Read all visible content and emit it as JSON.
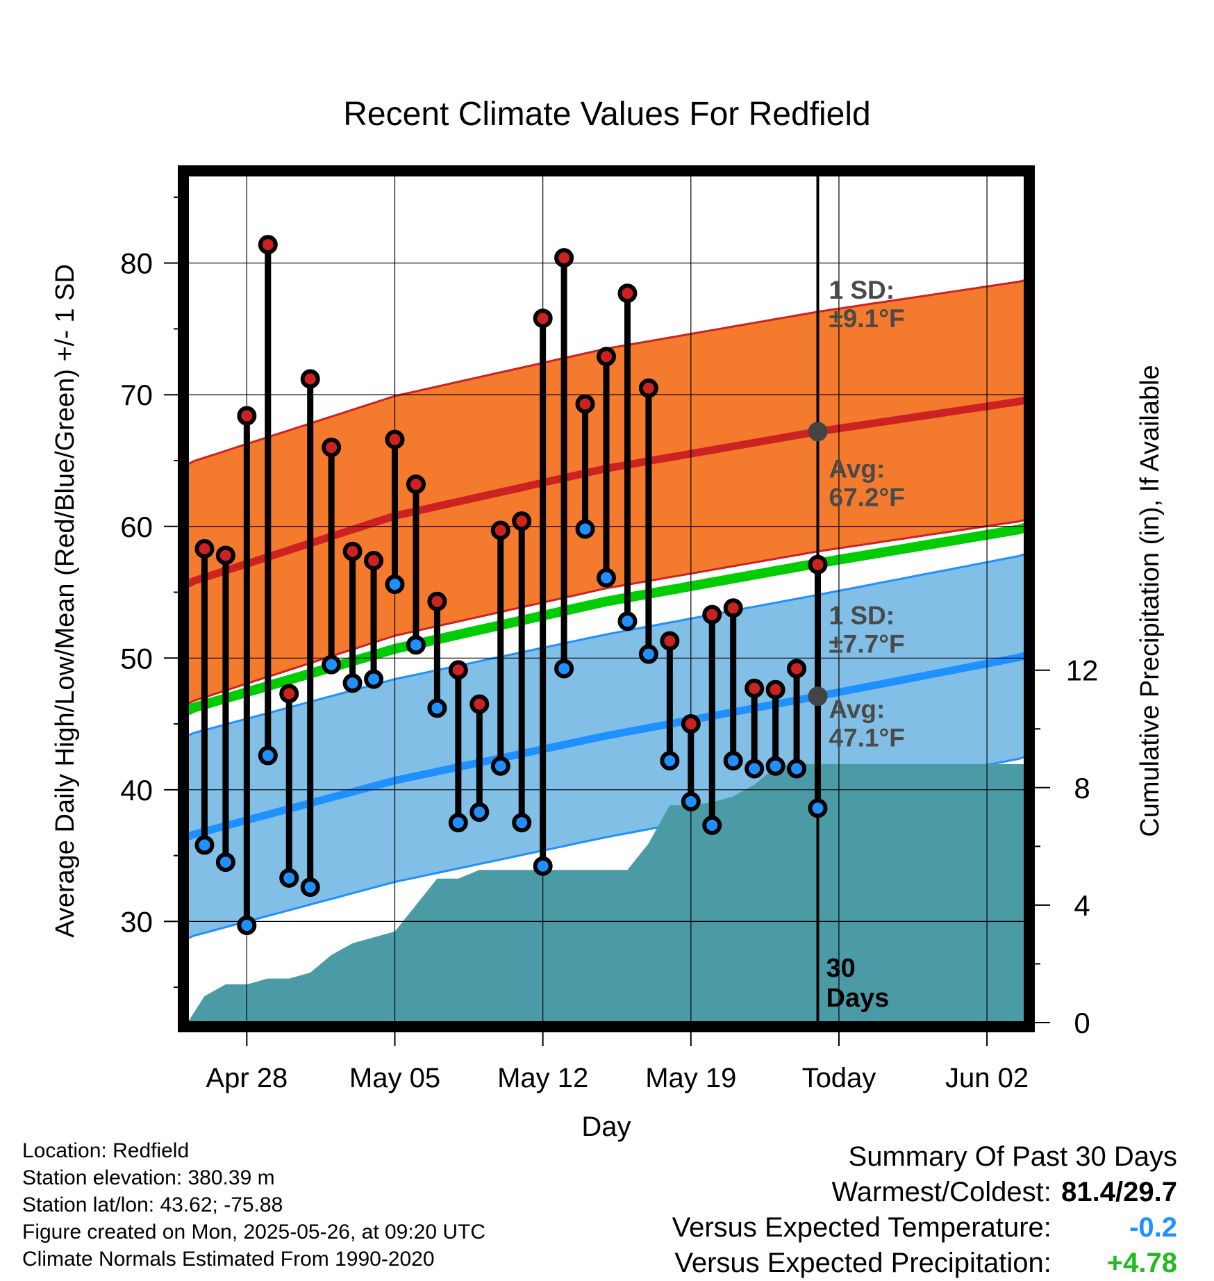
{
  "chart_data": {
    "type": "line",
    "title": "Recent Climate Values For Redfield",
    "xlabel": "Day",
    "ylabel": "Average Daily High/Low/Mean (Red/Blue/Green) +/- 1 SD",
    "ylabel_right": "Cumulative Precipitation (in), If Available",
    "x_ticks": [
      "Apr 28",
      "May 05",
      "May 12",
      "May 19",
      "Today",
      "Jun 02"
    ],
    "x_range": [
      "2025-04-25",
      "2025-06-04"
    ],
    "y_ticks": [
      30,
      40,
      50,
      60,
      70,
      80
    ],
    "ylim": [
      22,
      87
    ],
    "y2_ticks": [
      0,
      4,
      8,
      12
    ],
    "y2lim": [
      0,
      29
    ],
    "grid": true,
    "colors": {
      "high": "#cc2222",
      "low": "#1e90ff",
      "mean": "#00cc00",
      "high_band": "#f47a2e",
      "low_band": "#82bfe6",
      "precip": "#4a9ba5",
      "warm_text": "#000000",
      "temp_anom": "#1e90ff",
      "precip_anom": "#22bb22"
    },
    "normals": {
      "dates": [
        "2025-04-25",
        "2025-05-05",
        "2025-05-15",
        "2025-05-25",
        "2025-06-04"
      ],
      "high_avg": [
        55.6,
        60.8,
        64.4,
        67.2,
        69.6
      ],
      "high_sd": 9.1,
      "low_avg": [
        36.4,
        40.7,
        44.1,
        47.1,
        50.2
      ],
      "low_sd": 7.7,
      "mean_avg": [
        46.0,
        50.7,
        54.3,
        57.2,
        59.9
      ]
    },
    "series": [
      {
        "name": "High",
        "values": [
          {
            "date": "2025-04-26",
            "value": 58.3
          },
          {
            "date": "2025-04-27",
            "value": 57.8
          },
          {
            "date": "2025-04-28",
            "value": 68.4
          },
          {
            "date": "2025-04-29",
            "value": 81.4
          },
          {
            "date": "2025-04-30",
            "value": 47.3
          },
          {
            "date": "2025-05-01",
            "value": 71.2
          },
          {
            "date": "2025-05-02",
            "value": 66.0
          },
          {
            "date": "2025-05-03",
            "value": 58.1
          },
          {
            "date": "2025-05-04",
            "value": 57.4
          },
          {
            "date": "2025-05-05",
            "value": 66.6
          },
          {
            "date": "2025-05-06",
            "value": 63.2
          },
          {
            "date": "2025-05-07",
            "value": 54.3
          },
          {
            "date": "2025-05-08",
            "value": 49.1
          },
          {
            "date": "2025-05-09",
            "value": 46.5
          },
          {
            "date": "2025-05-10",
            "value": 59.7
          },
          {
            "date": "2025-05-11",
            "value": 60.4
          },
          {
            "date": "2025-05-12",
            "value": 75.8
          },
          {
            "date": "2025-05-13",
            "value": 80.4
          },
          {
            "date": "2025-05-14",
            "value": 69.3
          },
          {
            "date": "2025-05-15",
            "value": 72.9
          },
          {
            "date": "2025-05-16",
            "value": 77.7
          },
          {
            "date": "2025-05-17",
            "value": 70.5
          },
          {
            "date": "2025-05-18",
            "value": 51.3
          },
          {
            "date": "2025-05-19",
            "value": 45.0
          },
          {
            "date": "2025-05-20",
            "value": 53.3
          },
          {
            "date": "2025-05-21",
            "value": 53.8
          },
          {
            "date": "2025-05-22",
            "value": 47.7
          },
          {
            "date": "2025-05-23",
            "value": 47.6
          },
          {
            "date": "2025-05-24",
            "value": 49.2
          },
          {
            "date": "2025-05-25",
            "value": 57.1
          }
        ]
      },
      {
        "name": "Low",
        "values": [
          {
            "date": "2025-04-26",
            "value": 35.8
          },
          {
            "date": "2025-04-27",
            "value": 34.5
          },
          {
            "date": "2025-04-28",
            "value": 29.7
          },
          {
            "date": "2025-04-29",
            "value": 42.6
          },
          {
            "date": "2025-04-30",
            "value": 33.3
          },
          {
            "date": "2025-05-01",
            "value": 32.6
          },
          {
            "date": "2025-05-02",
            "value": 49.5
          },
          {
            "date": "2025-05-03",
            "value": 48.1
          },
          {
            "date": "2025-05-04",
            "value": 48.4
          },
          {
            "date": "2025-05-05",
            "value": 55.6
          },
          {
            "date": "2025-05-06",
            "value": 51.0
          },
          {
            "date": "2025-05-07",
            "value": 46.2
          },
          {
            "date": "2025-05-08",
            "value": 37.5
          },
          {
            "date": "2025-05-09",
            "value": 38.3
          },
          {
            "date": "2025-05-10",
            "value": 41.8
          },
          {
            "date": "2025-05-11",
            "value": 37.5
          },
          {
            "date": "2025-05-12",
            "value": 34.2
          },
          {
            "date": "2025-05-13",
            "value": 49.2
          },
          {
            "date": "2025-05-14",
            "value": 59.8
          },
          {
            "date": "2025-05-15",
            "value": 56.1
          },
          {
            "date": "2025-05-16",
            "value": 52.8
          },
          {
            "date": "2025-05-17",
            "value": 50.3
          },
          {
            "date": "2025-05-18",
            "value": 42.2
          },
          {
            "date": "2025-05-19",
            "value": 39.1
          },
          {
            "date": "2025-05-20",
            "value": 37.3
          },
          {
            "date": "2025-05-21",
            "value": 42.2
          },
          {
            "date": "2025-05-22",
            "value": 41.6
          },
          {
            "date": "2025-05-23",
            "value": 41.8
          },
          {
            "date": "2025-05-24",
            "value": 41.6
          },
          {
            "date": "2025-05-25",
            "value": 38.6
          }
        ]
      },
      {
        "name": "Cumulative Precipitation",
        "values": [
          {
            "date": "2025-04-25",
            "value": 0.0
          },
          {
            "date": "2025-04-26",
            "value": 0.9
          },
          {
            "date": "2025-04-27",
            "value": 1.3
          },
          {
            "date": "2025-04-28",
            "value": 1.3
          },
          {
            "date": "2025-04-29",
            "value": 1.5
          },
          {
            "date": "2025-04-30",
            "value": 1.5
          },
          {
            "date": "2025-05-01",
            "value": 1.7
          },
          {
            "date": "2025-05-02",
            "value": 2.3
          },
          {
            "date": "2025-05-03",
            "value": 2.7
          },
          {
            "date": "2025-05-04",
            "value": 2.9
          },
          {
            "date": "2025-05-05",
            "value": 3.1
          },
          {
            "date": "2025-05-06",
            "value": 4.0
          },
          {
            "date": "2025-05-07",
            "value": 4.9
          },
          {
            "date": "2025-05-08",
            "value": 4.9
          },
          {
            "date": "2025-05-09",
            "value": 5.2
          },
          {
            "date": "2025-05-10",
            "value": 5.2
          },
          {
            "date": "2025-05-11",
            "value": 5.2
          },
          {
            "date": "2025-05-12",
            "value": 5.2
          },
          {
            "date": "2025-05-13",
            "value": 5.2
          },
          {
            "date": "2025-05-14",
            "value": 5.2
          },
          {
            "date": "2025-05-15",
            "value": 5.2
          },
          {
            "date": "2025-05-16",
            "value": 5.2
          },
          {
            "date": "2025-05-17",
            "value": 6.1
          },
          {
            "date": "2025-05-18",
            "value": 7.4
          },
          {
            "date": "2025-05-19",
            "value": 7.4
          },
          {
            "date": "2025-05-20",
            "value": 7.5
          },
          {
            "date": "2025-05-21",
            "value": 7.7
          },
          {
            "date": "2025-05-22",
            "value": 8.1
          },
          {
            "date": "2025-05-23",
            "value": 8.7
          },
          {
            "date": "2025-05-24",
            "value": 8.8
          },
          {
            "date": "2025-05-25",
            "value": 8.8
          },
          {
            "date": "2025-06-04",
            "value": 8.8
          }
        ]
      }
    ],
    "today": "2025-05-25",
    "annotations": {
      "high_sd_line1": "1 SD:",
      "high_sd_line2": "±9.1°F",
      "high_avg_line1": "Avg:",
      "high_avg_line2": "67.2°F",
      "low_sd_line1": "1 SD:",
      "low_sd_line2": "±7.7°F",
      "low_avg_line1": "Avg:",
      "low_avg_line2": "47.1°F",
      "days_line1": "30",
      "days_line2": "Days"
    }
  },
  "meta": {
    "location": "Location: Redfield",
    "elevation": "Station elevation: 380.39 m",
    "latlon": "Station lat/lon: 43.62; -75.88",
    "created": "Figure created on Mon, 2025-05-26, at 09:20 UTC",
    "normals": "Climate Normals Estimated From 1990-2020"
  },
  "summary": {
    "title": "Summary Of Past 30 Days",
    "warm_label": "Warmest/Coldest:",
    "warm_value": "81.4/29.7",
    "temp_label": "Versus Expected Temperature:",
    "temp_value": "-0.2",
    "precip_label": "Versus Expected Precipitation:",
    "precip_value": "+4.78"
  }
}
